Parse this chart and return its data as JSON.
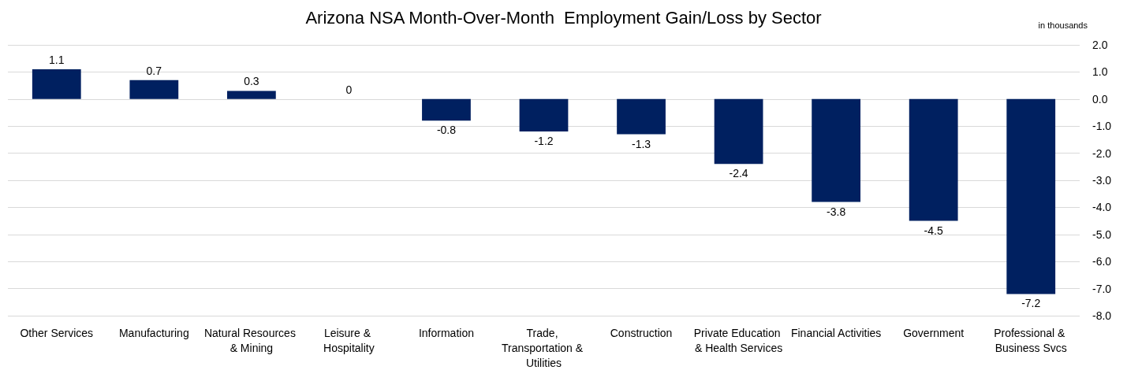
{
  "chart_data": {
    "type": "bar",
    "title": "Arizona NSA Month-Over-Month  Employment Gain/Loss by Sector",
    "ylabel": "in thousands",
    "categories": [
      "Other Services",
      "Manufacturing",
      "Natural Resources & Mining",
      "Leisure & Hospitality",
      "Information",
      "Trade, Transportation & Utilities",
      "Construction",
      "Private Education & Health Services",
      "Financial Activities",
      "Government",
      "Professional & Business Svcs"
    ],
    "values": [
      1.1,
      0.7,
      0.3,
      0,
      -0.8,
      -1.2,
      -1.3,
      -2.4,
      -3.8,
      -4.5,
      -7.2
    ],
    "color": "#002060",
    "ylim": [
      -8,
      2
    ],
    "yticks": [
      {
        "value": 2,
        "label": "2.0"
      },
      {
        "value": 1,
        "label": "1.0"
      },
      {
        "value": 0,
        "label": "0.0"
      },
      {
        "value": -1,
        "label": "-1.0"
      },
      {
        "value": -2,
        "label": "-2.0"
      },
      {
        "value": -3,
        "label": "-3.0"
      },
      {
        "value": -4,
        "label": "-4.0"
      },
      {
        "value": -5,
        "label": "-5.0"
      },
      {
        "value": -6,
        "label": "-6.0"
      },
      {
        "value": -7,
        "label": "-7.0"
      },
      {
        "value": -8,
        "label": "-8.0"
      }
    ],
    "grid": true,
    "data_labels": true
  }
}
